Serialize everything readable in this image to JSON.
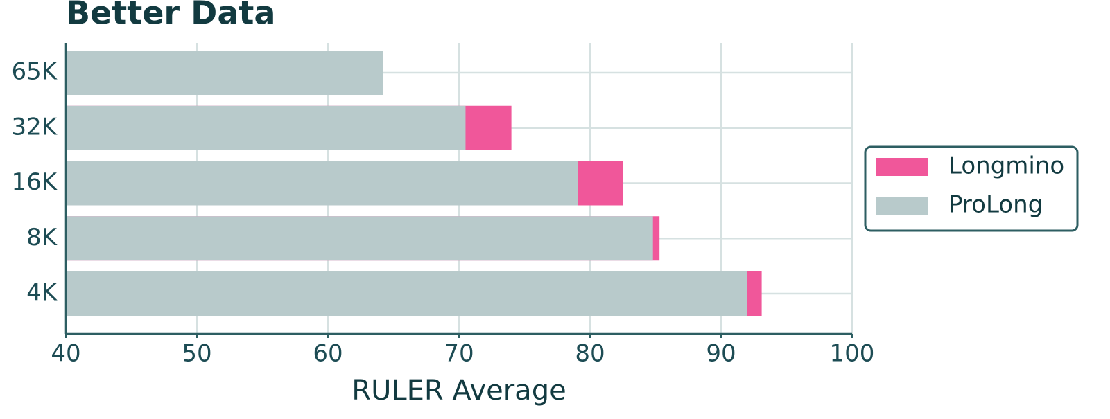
{
  "chart_data": {
    "type": "bar",
    "orientation": "horizontal",
    "title": "Better Data",
    "x_label": "RULER Average",
    "categories": [
      "65K",
      "32K",
      "16K",
      "8K",
      "4K"
    ],
    "series": [
      {
        "name": "Longmino",
        "color": "#f0579a",
        "values": [
          61.7,
          74.0,
          82.5,
          85.3,
          93.1
        ]
      },
      {
        "name": "ProLong",
        "color": "#b8cacb",
        "values": [
          64.2,
          70.5,
          79.1,
          84.8,
          92.0
        ]
      }
    ],
    "xlim": [
      40,
      100
    ],
    "xticks": [
      40,
      50,
      60,
      70,
      80,
      90,
      100
    ],
    "grid": true,
    "legend": "right"
  }
}
